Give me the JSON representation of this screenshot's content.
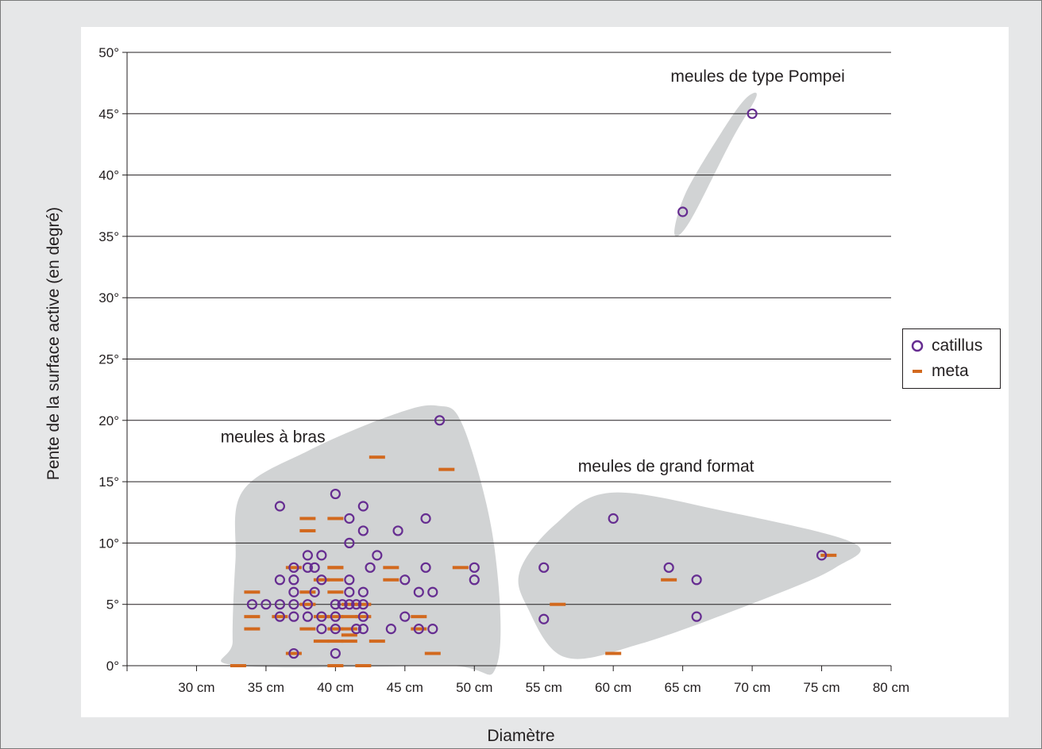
{
  "chart_data": {
    "type": "scatter",
    "xlabel": "Diamètre",
    "ylabel": "Pente de la surface active (en degré)",
    "xlim": [
      25,
      80
    ],
    "ylim": [
      0,
      50
    ],
    "x_ticks": [
      {
        "value": 30,
        "label": "30 cm"
      },
      {
        "value": 35,
        "label": "35 cm"
      },
      {
        "value": 40,
        "label": "40 cm"
      },
      {
        "value": 45,
        "label": "45 cm"
      },
      {
        "value": 50,
        "label": "50 cm"
      },
      {
        "value": 55,
        "label": "55 cm"
      },
      {
        "value": 60,
        "label": "60 cm"
      },
      {
        "value": 65,
        "label": "65 cm"
      },
      {
        "value": 70,
        "label": "70 cm"
      },
      {
        "value": 75,
        "label": "75 cm"
      },
      {
        "value": 80,
        "label": "80 cm"
      }
    ],
    "y_ticks": [
      {
        "value": 0,
        "label": "0°"
      },
      {
        "value": 5,
        "label": "5°"
      },
      {
        "value": 10,
        "label": "10°"
      },
      {
        "value": 15,
        "label": "15°"
      },
      {
        "value": 20,
        "label": "20°"
      },
      {
        "value": 25,
        "label": "25°"
      },
      {
        "value": 30,
        "label": "30°"
      },
      {
        "value": 35,
        "label": "35°"
      },
      {
        "value": 40,
        "label": "40°"
      },
      {
        "value": 45,
        "label": "45°"
      },
      {
        "value": 50,
        "label": "50°"
      }
    ],
    "grid": "horizontal",
    "legend_position": "right",
    "series": [
      {
        "name": "catillus",
        "marker": "circle",
        "color": "#662d91",
        "points": [
          [
            47.5,
            20
          ],
          [
            36,
            13
          ],
          [
            42,
            13
          ],
          [
            40,
            14
          ],
          [
            41,
            12
          ],
          [
            46.5,
            12
          ],
          [
            42,
            11
          ],
          [
            44.5,
            11
          ],
          [
            41,
            10
          ],
          [
            38,
            9
          ],
          [
            39,
            9
          ],
          [
            43,
            9
          ],
          [
            37,
            8
          ],
          [
            38,
            8
          ],
          [
            38.5,
            8
          ],
          [
            42.5,
            8
          ],
          [
            46.5,
            8
          ],
          [
            50,
            8
          ],
          [
            36,
            7
          ],
          [
            37,
            7
          ],
          [
            39,
            7
          ],
          [
            41,
            7
          ],
          [
            45,
            7
          ],
          [
            50,
            7
          ],
          [
            37,
            6
          ],
          [
            38.5,
            6
          ],
          [
            41,
            6
          ],
          [
            42,
            6
          ],
          [
            46,
            6
          ],
          [
            47,
            6
          ],
          [
            34,
            5
          ],
          [
            35,
            5
          ],
          [
            36,
            5
          ],
          [
            37,
            5
          ],
          [
            38,
            5
          ],
          [
            40,
            5
          ],
          [
            41,
            5
          ],
          [
            42,
            5
          ],
          [
            41.5,
            5
          ],
          [
            40.5,
            5
          ],
          [
            36,
            4
          ],
          [
            37,
            4
          ],
          [
            38,
            4
          ],
          [
            39,
            4
          ],
          [
            40,
            4
          ],
          [
            42,
            4
          ],
          [
            45,
            4
          ],
          [
            39,
            3
          ],
          [
            40,
            3
          ],
          [
            41.5,
            3
          ],
          [
            42,
            3
          ],
          [
            44,
            3
          ],
          [
            46,
            3
          ],
          [
            47,
            3
          ],
          [
            37,
            1
          ],
          [
            40,
            1
          ],
          [
            55,
            8
          ],
          [
            55,
            3.8
          ],
          [
            60,
            12
          ],
          [
            64,
            8
          ],
          [
            66,
            7
          ],
          [
            66,
            4
          ],
          [
            75,
            9
          ],
          [
            65,
            37
          ],
          [
            70,
            45
          ]
        ]
      },
      {
        "name": "meta",
        "marker": "dash",
        "color": "#d2691e",
        "points": [
          [
            43,
            17
          ],
          [
            48,
            16
          ],
          [
            38,
            12
          ],
          [
            40,
            12
          ],
          [
            38,
            11
          ],
          [
            37,
            8
          ],
          [
            40,
            8
          ],
          [
            44,
            8
          ],
          [
            49,
            8
          ],
          [
            40,
            8
          ],
          [
            39,
            7
          ],
          [
            40,
            7
          ],
          [
            44,
            7
          ],
          [
            34,
            6
          ],
          [
            38,
            6
          ],
          [
            40,
            6
          ],
          [
            38,
            5
          ],
          [
            41,
            5
          ],
          [
            42,
            5
          ],
          [
            56,
            5
          ],
          [
            34,
            4
          ],
          [
            36,
            4
          ],
          [
            39,
            4
          ],
          [
            40,
            4
          ],
          [
            41,
            4
          ],
          [
            42,
            4
          ],
          [
            46,
            4
          ],
          [
            34,
            3
          ],
          [
            38,
            3
          ],
          [
            40,
            3
          ],
          [
            41,
            3
          ],
          [
            46,
            3
          ],
          [
            39,
            2
          ],
          [
            40,
            2
          ],
          [
            41,
            2
          ],
          [
            43,
            2
          ],
          [
            41,
            2.5
          ],
          [
            37,
            1
          ],
          [
            47,
            1
          ],
          [
            33,
            0
          ],
          [
            40,
            0
          ],
          [
            42,
            0
          ],
          [
            60,
            1
          ],
          [
            64,
            7
          ],
          [
            75.5,
            9
          ]
        ]
      }
    ],
    "annotations": [
      {
        "text": "meules de type Pompei",
        "x": 70.4,
        "y": 47.6
      },
      {
        "text": "meules à bras",
        "x": 35.5,
        "y": 18.2
      },
      {
        "text": "meules de grand format",
        "x": 63.8,
        "y": 15.8
      }
    ],
    "regions": [
      {
        "label": "meules de type Pompei",
        "color": "#d1d3d4"
      },
      {
        "label": "meules à bras",
        "color": "#d1d3d4"
      },
      {
        "label": "meules de grand format",
        "color": "#d1d3d4"
      }
    ]
  }
}
